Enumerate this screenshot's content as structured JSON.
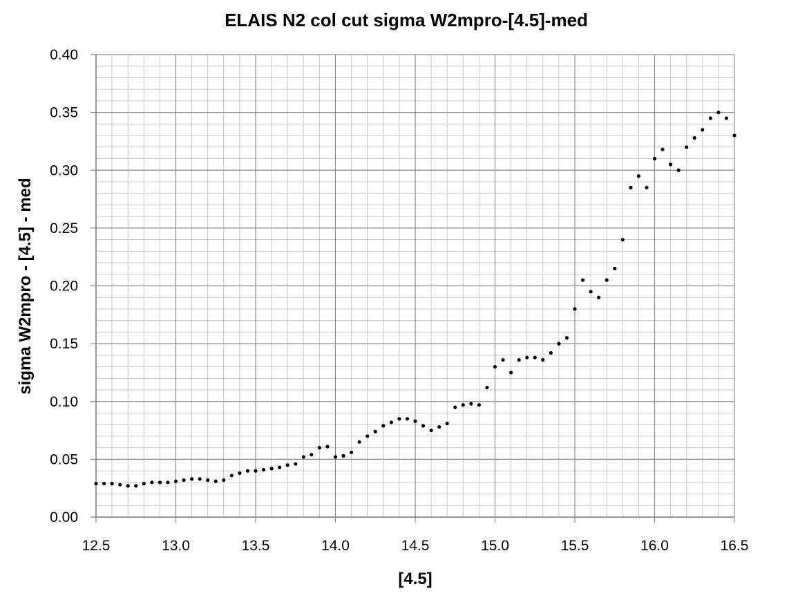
{
  "chart_data": {
    "type": "scatter",
    "title": "ELAIS N2 col cut sigma W2mpro-[4.5]-med",
    "xlabel": "[4.5]",
    "ylabel": "sigma W2mpro - [4.5] - med",
    "xlim": [
      12.5,
      16.5
    ],
    "ylim": [
      0.0,
      0.4
    ],
    "x_major_step": 0.5,
    "x_minor_step": 0.1,
    "y_major_step": 0.05,
    "y_minor_step": 0.01,
    "grid": true,
    "legend": "none",
    "marker_color": "#000000",
    "grid_color": "#c8c8c8",
    "x_tick_labels": [
      "12.5",
      "13.0",
      "13.5",
      "14.0",
      "14.5",
      "15.0",
      "15.5",
      "16.0",
      "16.5"
    ],
    "y_tick_labels": [
      "0.00",
      "0.05",
      "0.10",
      "0.15",
      "0.20",
      "0.25",
      "0.30",
      "0.35",
      "0.40"
    ],
    "series": [
      {
        "x": [
          12.5,
          12.55,
          12.6,
          12.65,
          12.7,
          12.75,
          12.8,
          12.85,
          12.9,
          12.95,
          13.0,
          13.05,
          13.1,
          13.15,
          13.2,
          13.25,
          13.3,
          13.35,
          13.4,
          13.45,
          13.5,
          13.55,
          13.6,
          13.65,
          13.7,
          13.75,
          13.8,
          13.85,
          13.9,
          13.95,
          14.0,
          14.05,
          14.1,
          14.15,
          14.2,
          14.25,
          14.3,
          14.35,
          14.4,
          14.45,
          14.5,
          14.55,
          14.6,
          14.65,
          14.7,
          14.75,
          14.8,
          14.85,
          14.9,
          14.95,
          15.0,
          15.05,
          15.1,
          15.15,
          15.2,
          15.25,
          15.3,
          15.35,
          15.4,
          15.45,
          15.5,
          15.55,
          15.6,
          15.65,
          15.7,
          15.75,
          15.8,
          15.85,
          15.9,
          15.95,
          16.0,
          16.05,
          16.1,
          16.15,
          16.2,
          16.25,
          16.3,
          16.35,
          16.4,
          16.45,
          16.5
        ],
        "y": [
          0.029,
          0.029,
          0.029,
          0.028,
          0.027,
          0.027,
          0.029,
          0.03,
          0.03,
          0.03,
          0.031,
          0.032,
          0.033,
          0.033,
          0.032,
          0.031,
          0.032,
          0.036,
          0.038,
          0.04,
          0.04,
          0.041,
          0.042,
          0.043,
          0.045,
          0.046,
          0.052,
          0.054,
          0.06,
          0.061,
          0.052,
          0.053,
          0.056,
          0.065,
          0.07,
          0.074,
          0.079,
          0.082,
          0.085,
          0.085,
          0.083,
          0.079,
          0.075,
          0.078,
          0.081,
          0.095,
          0.097,
          0.098,
          0.097,
          0.112,
          0.13,
          0.136,
          0.125,
          0.136,
          0.138,
          0.138,
          0.136,
          0.142,
          0.15,
          0.155,
          0.18,
          0.205,
          0.195,
          0.19,
          0.205,
          0.215,
          0.24,
          0.285,
          0.295,
          0.285,
          0.31,
          0.318,
          0.305,
          0.3,
          0.32,
          0.328,
          0.335,
          0.345,
          0.35,
          0.345,
          0.33
        ]
      }
    ]
  }
}
